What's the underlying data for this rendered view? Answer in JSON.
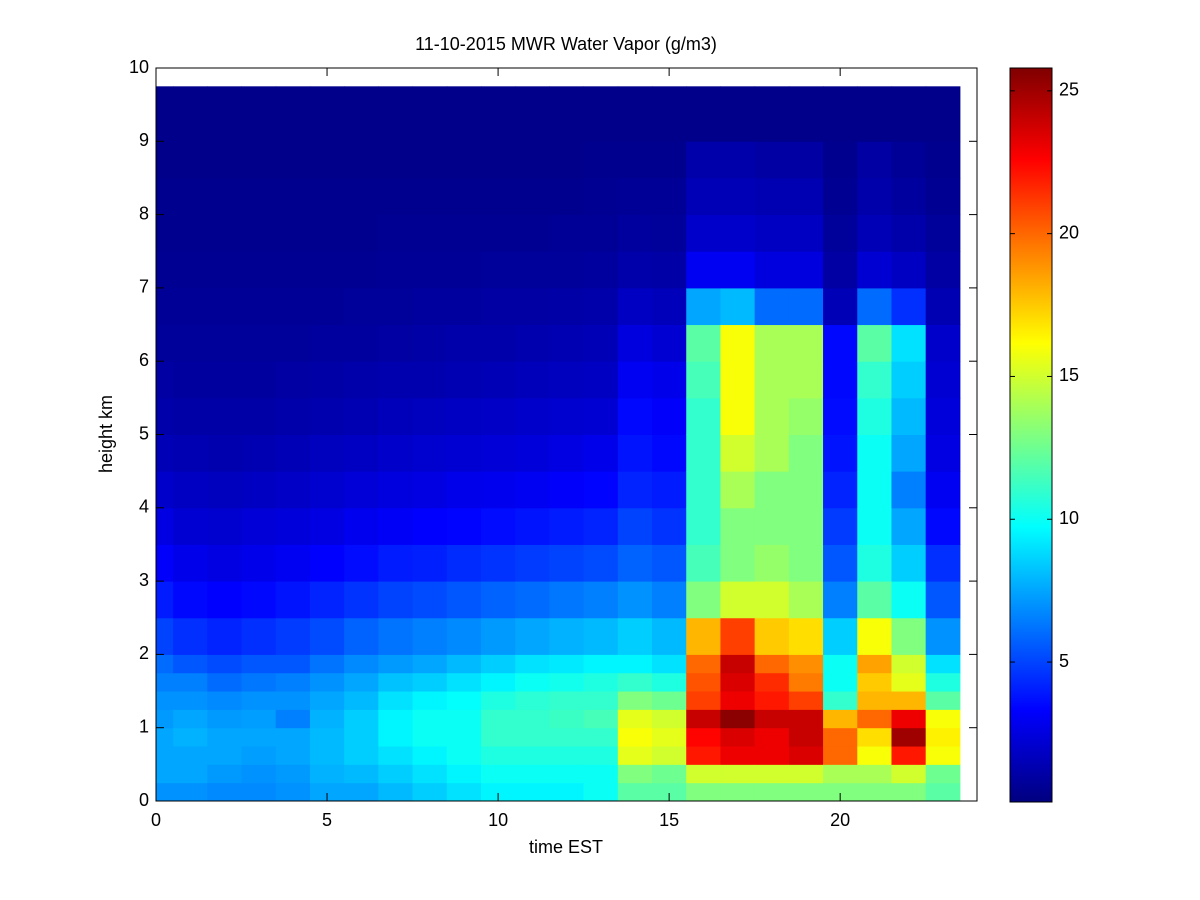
{
  "chart_data": {
    "type": "heatmap",
    "title": "11-10-2015 MWR Water Vapor (g/m3)",
    "xlabel": "time EST",
    "ylabel": "height km",
    "colormap": "jet",
    "xlim": [
      0,
      24
    ],
    "ylim": [
      0,
      10
    ],
    "xticks": [
      0,
      5,
      10,
      15,
      20
    ],
    "yticks": [
      0,
      1,
      2,
      3,
      4,
      5,
      6,
      7,
      8,
      9,
      10
    ],
    "clim": [
      0.1,
      25.8
    ],
    "cticks": [
      5,
      10,
      15,
      20,
      25
    ],
    "x": [
      0,
      1,
      2,
      3,
      4,
      5,
      6,
      7,
      8,
      9,
      10,
      11,
      12,
      13,
      14,
      15,
      16,
      17,
      18,
      19,
      20,
      21,
      22,
      23
    ],
    "y_bins": [
      0,
      0.25,
      0.5,
      0.75,
      1,
      1.25,
      1.5,
      1.75,
      2,
      2.5,
      3,
      3.5,
      4,
      4.5,
      5,
      5.5,
      6,
      6.5,
      7,
      7.5,
      8,
      8.5,
      9,
      9.75
    ],
    "values": [
      [
        7,
        7.5,
        7.5,
        7.5,
        7.2,
        7,
        6.5,
        6,
        5,
        4,
        3.2,
        2.6,
        2,
        1.5,
        1.2,
        1,
        0.8,
        0.7,
        0.6,
        0.5,
        0.5,
        0.4,
        0.4
      ],
      [
        7,
        7.5,
        7.5,
        7.8,
        7.5,
        7,
        6.5,
        5.5,
        4.5,
        3.5,
        2.8,
        2.2,
        1.8,
        1.4,
        1.1,
        0.9,
        0.8,
        0.7,
        0.6,
        0.5,
        0.5,
        0.4,
        0.4
      ],
      [
        6.8,
        7.2,
        7.5,
        7.5,
        7.2,
        6.8,
        6,
        5.2,
        4.2,
        3.3,
        2.6,
        2.1,
        1.7,
        1.3,
        1.1,
        0.9,
        0.8,
        0.7,
        0.6,
        0.5,
        0.5,
        0.4,
        0.4
      ],
      [
        6.8,
        7,
        7.3,
        7.5,
        7.3,
        7,
        6.3,
        5.5,
        4.5,
        3.5,
        2.8,
        2.3,
        1.8,
        1.4,
        1.1,
        0.9,
        0.8,
        0.7,
        0.6,
        0.5,
        0.5,
        0.4,
        0.4
      ],
      [
        7,
        7.2,
        7.5,
        7.5,
        6.5,
        7,
        6.5,
        5.5,
        4.8,
        3.8,
        3,
        2.4,
        1.9,
        1.5,
        1.2,
        1,
        0.8,
        0.7,
        0.6,
        0.5,
        0.5,
        0.4,
        0.4
      ],
      [
        7.5,
        7.8,
        8,
        8,
        7.8,
        7.5,
        7,
        6.2,
        5.2,
        4.2,
        3.3,
        2.6,
        2.1,
        1.7,
        1.3,
        1.1,
        0.9,
        0.7,
        0.6,
        0.5,
        0.5,
        0.4,
        0.4
      ],
      [
        7.5,
        8,
        8.5,
        8.5,
        8.5,
        8,
        7.5,
        6.8,
        5.8,
        4.6,
        3.6,
        2.9,
        2.3,
        1.8,
        1.4,
        1.2,
        0.9,
        0.8,
        0.6,
        0.5,
        0.5,
        0.4,
        0.4
      ],
      [
        8,
        8.5,
        9,
        9.5,
        9.5,
        9,
        8.2,
        7.2,
        6.2,
        5,
        4,
        3.1,
        2.5,
        2,
        1.6,
        1.3,
        1,
        0.8,
        0.7,
        0.6,
        0.5,
        0.4,
        0.4
      ],
      [
        8.5,
        9,
        9.5,
        10,
        10,
        9.5,
        8.5,
        7.5,
        6.5,
        5.2,
        4.1,
        3.3,
        2.6,
        2.1,
        1.7,
        1.3,
        1.1,
        0.9,
        0.7,
        0.6,
        0.5,
        0.4,
        0.4
      ],
      [
        9,
        9.5,
        10,
        10,
        10,
        9.8,
        9,
        8,
        6.8,
        5.5,
        4.4,
        3.4,
        2.8,
        2.2,
        1.8,
        1.4,
        1.2,
        0.9,
        0.7,
        0.6,
        0.5,
        0.4,
        0.4
      ],
      [
        9.5,
        10,
        10.5,
        11,
        11,
        10.5,
        9.5,
        8.5,
        7.2,
        5.8,
        4.6,
        3.6,
        2.9,
        2.3,
        1.9,
        1.5,
        1.2,
        1,
        0.8,
        0.6,
        0.5,
        0.4,
        0.4
      ],
      [
        9.5,
        10,
        10.5,
        11,
        11,
        10.8,
        10,
        9,
        7.5,
        6,
        4.8,
        3.8,
        3,
        2.4,
        2,
        1.6,
        1.3,
        1,
        0.8,
        0.6,
        0.5,
        0.4,
        0.4
      ],
      [
        9.5,
        10,
        10.5,
        11,
        11.2,
        11,
        10.2,
        9.2,
        7.8,
        6.3,
        5,
        4,
        3.2,
        2.6,
        2.1,
        1.7,
        1.4,
        1.1,
        0.8,
        0.7,
        0.5,
        0.4,
        0.4
      ],
      [
        10,
        10,
        10.5,
        11,
        11.5,
        11,
        10.5,
        9.5,
        8,
        6.5,
        5.2,
        4.2,
        3.4,
        2.8,
        2.2,
        1.8,
        1.5,
        1.2,
        0.9,
        0.7,
        0.6,
        0.5,
        0.4
      ],
      [
        12,
        13,
        15.5,
        16,
        15.5,
        13,
        11,
        9.5,
        8.5,
        7,
        5.8,
        5,
        4.2,
        3.8,
        3.5,
        3,
        2.5,
        1.8,
        1.2,
        0.9,
        0.7,
        0.5,
        0.4
      ],
      [
        12,
        12.5,
        15,
        15.5,
        15,
        12.5,
        10.5,
        9,
        8,
        6.5,
        5.5,
        4.6,
        4,
        3.5,
        3.2,
        2.8,
        2.2,
        1.6,
        1.1,
        0.8,
        0.7,
        0.5,
        0.4
      ],
      [
        13,
        15,
        22,
        22.5,
        24,
        21,
        20.5,
        20,
        18,
        13,
        11.5,
        11,
        11,
        11,
        11,
        11.5,
        12,
        7.5,
        3,
        2,
        1.5,
        1.2,
        0.4
      ],
      [
        13,
        15,
        23,
        23.5,
        25.5,
        23,
        23.5,
        24,
        21,
        15,
        13,
        13,
        14,
        15,
        16,
        16,
        16,
        8,
        3,
        2,
        1.5,
        1.2,
        0.4
      ],
      [
        13,
        15,
        23,
        23,
        24,
        22,
        21.5,
        20,
        17.5,
        15,
        13.5,
        13,
        13,
        14,
        14,
        14,
        14,
        6,
        2.5,
        1.8,
        1.4,
        1,
        0.4
      ],
      [
        13,
        15,
        23.5,
        24,
        24,
        21,
        19.5,
        19,
        17,
        14,
        13,
        13,
        13,
        13,
        13.5,
        14,
        14,
        6,
        2.5,
        1.8,
        1.4,
        1,
        0.4
      ],
      [
        13,
        14,
        20,
        20,
        18,
        11,
        10,
        10,
        8.5,
        6.5,
        5.5,
        4.8,
        4.2,
        3.8,
        3.6,
        3.5,
        3.5,
        1.5,
        1,
        0.8,
        0.6,
        0.5,
        0.4
      ],
      [
        13,
        14,
        16,
        17,
        20,
        18,
        17.5,
        18.5,
        16,
        12,
        10.5,
        10,
        10,
        10,
        10.5,
        11,
        12,
        6,
        2.2,
        1.5,
        1.2,
        1,
        0.4
      ],
      [
        13,
        15,
        22,
        25,
        23,
        18,
        15.5,
        15,
        13,
        10,
        8.5,
        7.5,
        6.5,
        7.5,
        8,
        8.5,
        9,
        4.5,
        1.8,
        1.2,
        0.9,
        0.7,
        0.4
      ],
      [
        12,
        12.5,
        16,
        16.5,
        16,
        12,
        10.5,
        9,
        7,
        5.5,
        4.5,
        3.5,
        3,
        2.6,
        2.4,
        2.2,
        2,
        1.4,
        1,
        0.8,
        0.6,
        0.5,
        0.4
      ]
    ]
  }
}
